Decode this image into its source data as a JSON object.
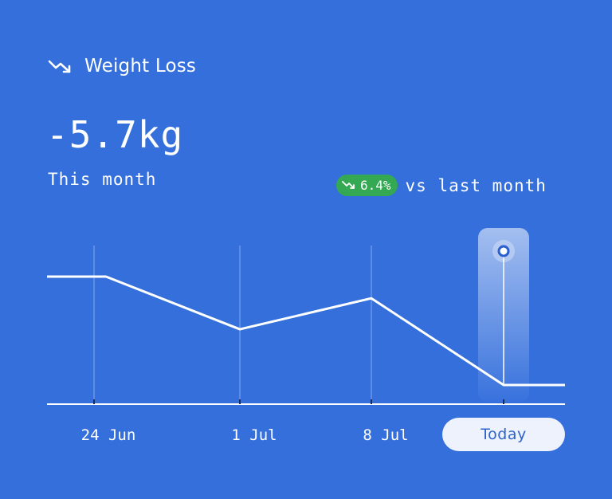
{
  "header": {
    "title": "Weight Loss",
    "icon": "trending-down-icon"
  },
  "summary": {
    "value": "-5.7kg",
    "period": "This month"
  },
  "comparison": {
    "change": "6.4%",
    "label": "vs last month",
    "badge_color": "#34A853"
  },
  "colors": {
    "background": "#346FDC",
    "line": "#ffffff",
    "pill_bg": "#EDF2FD",
    "pill_text": "#2E63CC"
  },
  "chart_data": {
    "type": "line",
    "categories": [
      "24 Jun",
      "1 Jul",
      "8 Jul",
      "Today"
    ],
    "highlighted": "Today",
    "series": [
      {
        "values": [
          5.8,
          4.1,
          5.1,
          2.3
        ]
      }
    ],
    "xlabel": "",
    "ylabel": "",
    "grid": "vertical"
  }
}
